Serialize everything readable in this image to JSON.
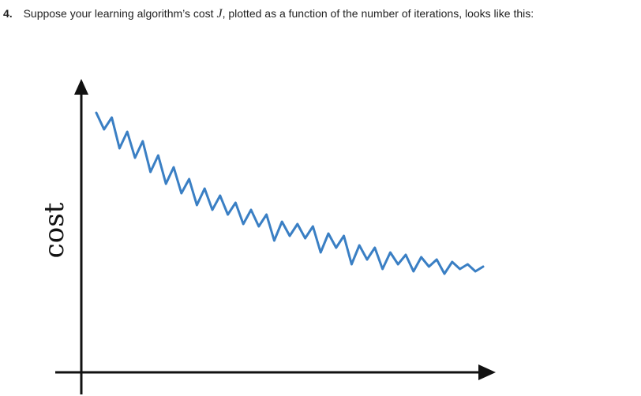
{
  "question": {
    "number": "4.",
    "text_before": "Suppose your learning algorithm’s cost",
    "variable": "J",
    "text_after": ", plotted as a function of the number of iterations, looks like this:"
  },
  "chart_data": {
    "type": "line",
    "title": "",
    "xlabel": "",
    "ylabel": "cost",
    "xlim": [
      0,
      100
    ],
    "ylim": [
      0,
      100
    ],
    "grid": false,
    "legend": "none",
    "series": [
      {
        "color": "#3a7fc4",
        "x": [
          0,
          2,
          4,
          6,
          8,
          10,
          12,
          14,
          16,
          18,
          20,
          22,
          24,
          26,
          28,
          30,
          32,
          34,
          36,
          38,
          40,
          42,
          44,
          46,
          48,
          50,
          52,
          54,
          56,
          58,
          60,
          62,
          64,
          66,
          68,
          70,
          72,
          74,
          76,
          78,
          80,
          82,
          84,
          86,
          88,
          90,
          92,
          94,
          96,
          98,
          100
        ],
        "values": [
          95,
          88,
          93,
          80,
          87,
          76,
          83,
          70,
          77,
          65,
          72,
          61,
          67,
          56,
          63,
          54,
          60,
          52,
          57,
          48,
          54,
          47,
          52,
          41,
          49,
          43,
          48,
          42,
          47,
          36,
          44,
          38,
          43,
          31,
          39,
          33,
          38,
          29,
          36,
          31,
          35,
          28,
          34,
          30,
          33,
          27,
          32,
          29,
          31,
          28,
          30
        ]
      }
    ]
  }
}
